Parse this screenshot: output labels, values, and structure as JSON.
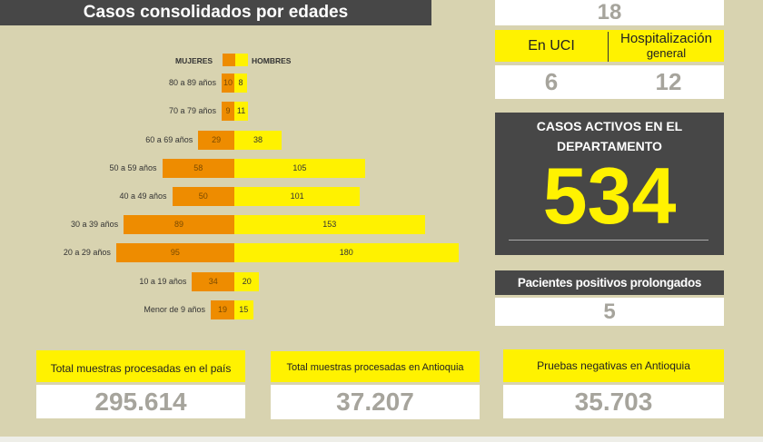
{
  "chart_data": {
    "type": "bar",
    "title": "Casos consolidados por edades",
    "legend": [
      "MUJERES",
      "HOMBRES"
    ],
    "legend_placement": "top",
    "categories": [
      "80 a 89 años",
      "70 a 79 años",
      "60 a 69 años",
      "50 a 59 años",
      "40 a 49 años",
      "30 a 39 años",
      "20 a 29 años",
      "10 a 19 años",
      "Menor de 9 años"
    ],
    "series": [
      {
        "name": "MUJERES",
        "color": "#ee8c00",
        "values": [
          10,
          9,
          29,
          58,
          50,
          89,
          95,
          34,
          19
        ]
      },
      {
        "name": "HOMBRES",
        "color": "#fff200",
        "values": [
          8,
          11,
          38,
          105,
          101,
          153,
          180,
          20,
          15
        ]
      }
    ]
  },
  "hosp": {
    "total": "18",
    "uci_label": "En UCI",
    "hosp_label": "Hospitalización",
    "hosp_label2": "general",
    "uci": "6",
    "hosp": "12"
  },
  "activos": {
    "label1": "CASOS ACTIVOS EN EL",
    "label2": "DEPARTAMENTO",
    "value": "534"
  },
  "prolongados": {
    "label": "Pacientes positivos prolongados",
    "value": "5"
  },
  "bottom": [
    {
      "label": "Total muestras procesadas en el país",
      "value": "295.614"
    },
    {
      "label": "Total muestras procesadas en Antioquia",
      "value": "37.207"
    },
    {
      "label": "Pruebas negativas en Antioquia",
      "value": "35.703"
    }
  ]
}
